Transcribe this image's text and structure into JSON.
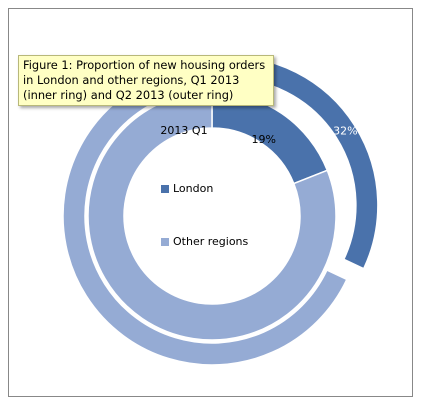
{
  "chart_data": {
    "type": "doughnut",
    "title": "Figure 1: Proportion of new housing orders in London and other regions, Q1 2013 (inner ring) and Q2 2013 (outer ring)",
    "categories": [
      "London",
      "Other regions"
    ],
    "colors": [
      "#4a72ab",
      "#95abd4"
    ],
    "series": [
      {
        "name": "2013 Q1",
        "values": [
          19,
          81
        ],
        "value_labels": [
          "19%",
          null
        ]
      },
      {
        "values": [
          32,
          68
        ],
        "value_labels": [
          "32%",
          null
        ]
      }
    ]
  }
}
